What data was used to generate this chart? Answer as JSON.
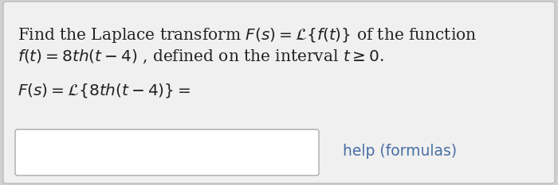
{
  "bg_color": "#d0d0d0",
  "card_color": "#f0f0f0",
  "input_box_color": "#ffffff",
  "input_box_border": "#aaaaaa",
  "text_color": "#222222",
  "help_color": "#4a6fa5",
  "help_text": "help (formulas)",
  "font_size_main": 14.5,
  "font_size_help": 13.5,
  "line1": "Find the Laplace transform $F(s) = \\mathcal{L}\\{f(t)\\}$ of the function",
  "line2": "$f(t) = 8th(t-4)$ , defined on the interval $t \\geq 0$.",
  "line3": "$F(s) = \\mathcal{L}\\{8th(t-4)\\} =$"
}
